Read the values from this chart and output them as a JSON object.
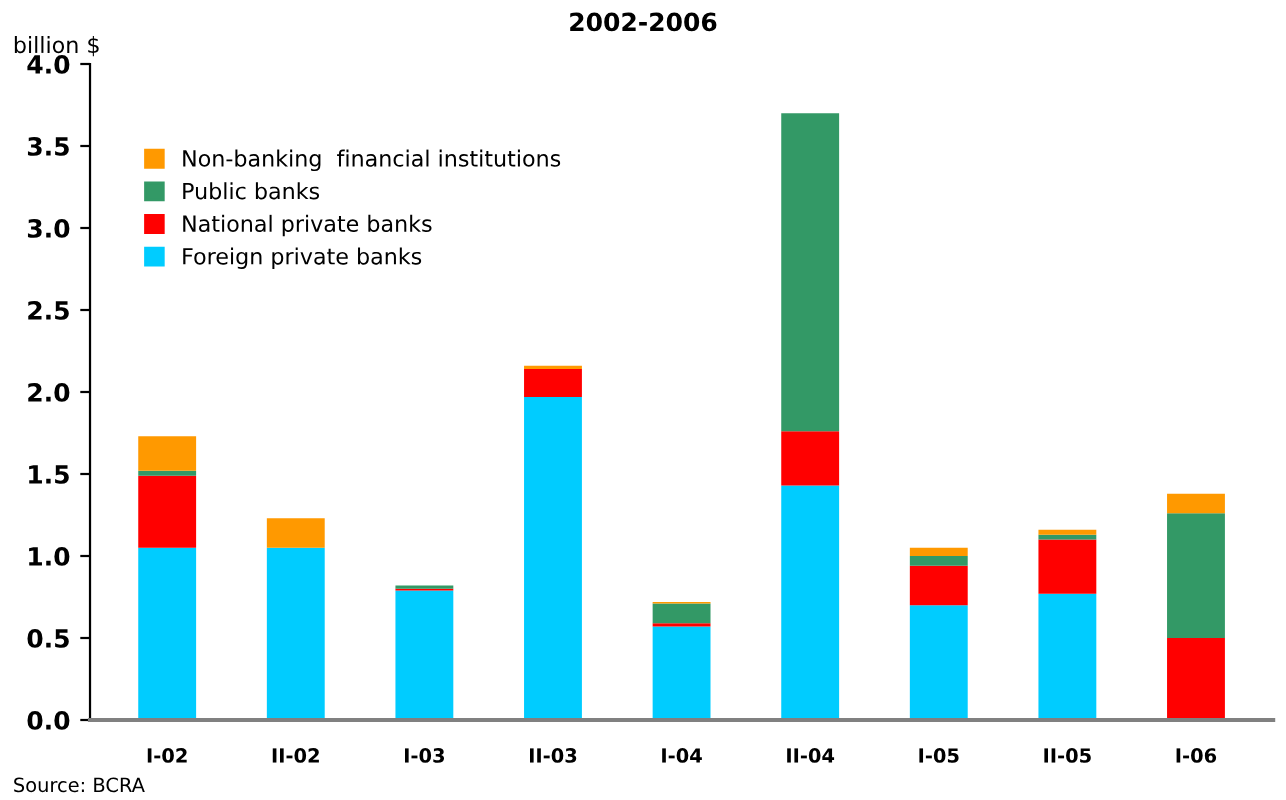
{
  "chart_data": {
    "type": "bar",
    "stacked": true,
    "title": "2002-2006",
    "ylabel": "billion $",
    "categories": [
      "I-02",
      "II-02",
      "I-03",
      "II-03",
      "I-04",
      "II-04",
      "I-05",
      "II-05",
      "I-06"
    ],
    "series": [
      {
        "name": "Foreign private banks",
        "color": "#00ccff",
        "values": [
          1.05,
          1.05,
          0.79,
          1.97,
          0.57,
          1.43,
          0.7,
          0.77,
          0
        ]
      },
      {
        "name": "National private banks",
        "color": "#ff0000",
        "values": [
          0.44,
          0,
          0.01,
          0.17,
          0.02,
          0.33,
          0.24,
          0.33,
          0.5
        ]
      },
      {
        "name": "Public banks",
        "color": "#339966",
        "values": [
          0.03,
          0,
          0.02,
          0,
          0.12,
          1.94,
          0.06,
          0.03,
          0.76
        ]
      },
      {
        "name": "Non-banking  financial institutions",
        "color": "#ff9900",
        "values": [
          0.21,
          0.18,
          0,
          0.02,
          0.01,
          0,
          0.05,
          0.03,
          0.12
        ]
      }
    ],
    "ylim": [
      0,
      4.0
    ],
    "yticks": [
      {
        "value": 0,
        "label": "0.0"
      },
      {
        "value": 0.5,
        "label": "0.5"
      },
      {
        "value": 1.0,
        "label": "1.0"
      },
      {
        "value": 1.5,
        "label": "1.5"
      },
      {
        "value": 2.0,
        "label": "2.0"
      },
      {
        "value": 2.5,
        "label": "2.5"
      },
      {
        "value": 3.0,
        "label": "3.0"
      },
      {
        "value": 3.5,
        "label": "3.5"
      },
      {
        "value": 4.0,
        "label": "4.0"
      }
    ],
    "grid": false,
    "legend": "top left",
    "annotations": [
      "Source: BCRA"
    ]
  }
}
